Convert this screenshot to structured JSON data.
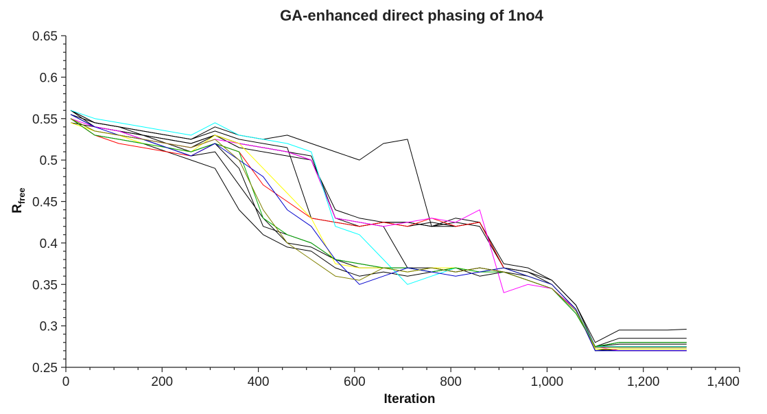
{
  "chart_data": {
    "type": "line",
    "title": "GA-enhanced direct phasing of 1no4",
    "xlabel": "Iteration",
    "ylabel_main": "R",
    "ylabel_sub": "free",
    "xlim": [
      0,
      1400
    ],
    "ylim": [
      0.25,
      0.65
    ],
    "x_ticks": [
      0,
      200,
      400,
      600,
      800,
      1000,
      1200,
      1400
    ],
    "x_tick_labels": [
      "0",
      "200",
      "400",
      "600",
      "800",
      "1,000",
      "1,200",
      "1,400"
    ],
    "y_ticks": [
      0.25,
      0.3,
      0.35,
      0.4,
      0.45,
      0.5,
      0.55,
      0.6,
      0.65
    ],
    "y_tick_labels": [
      "0.25",
      "0.3",
      "0.35",
      "0.4",
      "0.45",
      "0.5",
      "0.55",
      "0.6",
      "0.65"
    ],
    "grid": false,
    "legend": "none",
    "x": [
      10,
      60,
      110,
      160,
      210,
      260,
      310,
      360,
      410,
      460,
      510,
      560,
      610,
      660,
      710,
      760,
      810,
      860,
      910,
      960,
      1010,
      1060,
      1100,
      1150,
      1200,
      1250,
      1290
    ],
    "series": [
      {
        "color": "#000000",
        "values": [
          0.555,
          0.54,
          0.535,
          0.53,
          0.525,
          0.52,
          0.53,
          0.52,
          0.515,
          0.51,
          0.5,
          0.43,
          0.42,
          0.425,
          0.425,
          0.42,
          0.425,
          0.42,
          0.37,
          0.365,
          0.355,
          0.325,
          0.275,
          0.28,
          0.28,
          0.28,
          0.28
        ]
      },
      {
        "color": "#000000",
        "values": [
          0.56,
          0.545,
          0.54,
          0.535,
          0.53,
          0.525,
          0.535,
          0.525,
          0.52,
          0.515,
          0.43,
          0.425,
          0.42,
          0.425,
          0.42,
          0.425,
          0.42,
          0.425,
          0.37,
          0.365,
          0.35,
          0.32,
          0.275,
          0.275,
          0.275,
          0.275,
          0.275
        ]
      },
      {
        "color": "#000000",
        "values": [
          0.55,
          0.535,
          0.53,
          0.525,
          0.52,
          0.515,
          0.53,
          0.52,
          0.515,
          0.51,
          0.505,
          0.43,
          0.425,
          0.42,
          0.37,
          0.37,
          0.365,
          0.37,
          0.365,
          0.36,
          0.35,
          0.32,
          0.27,
          0.272,
          0.272,
          0.272,
          0.272
        ]
      },
      {
        "color": "#000000",
        "values": [
          0.545,
          0.54,
          0.535,
          0.53,
          0.52,
          0.51,
          0.52,
          0.49,
          0.42,
          0.41,
          0.4,
          0.38,
          0.375,
          0.37,
          0.37,
          0.365,
          0.37,
          0.365,
          0.37,
          0.36,
          0.35,
          0.32,
          0.27,
          0.27,
          0.27,
          0.27,
          0.27
        ]
      },
      {
        "color": "#000000",
        "values": [
          0.56,
          0.54,
          0.535,
          0.525,
          0.515,
          0.505,
          0.51,
          0.47,
          0.43,
          0.4,
          0.395,
          0.38,
          0.37,
          0.37,
          0.365,
          0.37,
          0.365,
          0.37,
          0.365,
          0.355,
          0.345,
          0.315,
          0.275,
          0.278,
          0.278,
          0.278,
          0.278
        ]
      },
      {
        "color": "#000000",
        "values": [
          0.555,
          0.545,
          0.54,
          0.535,
          0.53,
          0.525,
          0.54,
          0.53,
          0.525,
          0.53,
          0.52,
          0.51,
          0.5,
          0.52,
          0.525,
          0.42,
          0.42,
          0.425,
          0.375,
          0.37,
          0.355,
          0.325,
          0.28,
          0.295,
          0.295,
          0.295,
          0.296
        ]
      },
      {
        "color": "#000000",
        "values": [
          0.55,
          0.53,
          0.525,
          0.52,
          0.51,
          0.5,
          0.49,
          0.44,
          0.41,
          0.395,
          0.39,
          0.37,
          0.36,
          0.365,
          0.36,
          0.365,
          0.37,
          0.36,
          0.365,
          0.355,
          0.345,
          0.32,
          0.272,
          0.27,
          0.27,
          0.27,
          0.27
        ]
      },
      {
        "color": "#000000",
        "values": [
          0.56,
          0.545,
          0.54,
          0.53,
          0.525,
          0.52,
          0.53,
          0.515,
          0.51,
          0.505,
          0.5,
          0.44,
          0.43,
          0.425,
          0.425,
          0.42,
          0.43,
          0.425,
          0.37,
          0.36,
          0.35,
          0.32,
          0.275,
          0.285,
          0.285,
          0.285,
          0.285
        ]
      },
      {
        "color": "#ff0000",
        "values": [
          0.55,
          0.53,
          0.52,
          0.515,
          0.51,
          0.505,
          0.52,
          0.51,
          0.47,
          0.45,
          0.43,
          0.425,
          0.42,
          0.425,
          0.42,
          0.43,
          0.42,
          0.425,
          0.37,
          0.36,
          0.35,
          0.32,
          0.275,
          0.275,
          0.275,
          0.275,
          0.275
        ]
      },
      {
        "color": "#ff00ff",
        "values": [
          0.55,
          0.54,
          0.535,
          0.525,
          0.52,
          0.515,
          0.525,
          0.52,
          0.515,
          0.51,
          0.5,
          0.43,
          0.425,
          0.42,
          0.425,
          0.43,
          0.425,
          0.44,
          0.34,
          0.35,
          0.345,
          0.32,
          0.275,
          0.27,
          0.27,
          0.27,
          0.27
        ]
      },
      {
        "color": "#00ffff",
        "values": [
          0.56,
          0.55,
          0.545,
          0.54,
          0.535,
          0.53,
          0.545,
          0.53,
          0.525,
          0.52,
          0.51,
          0.42,
          0.41,
          0.38,
          0.35,
          0.36,
          0.37,
          0.365,
          0.37,
          0.36,
          0.35,
          0.32,
          0.275,
          0.275,
          0.275,
          0.275,
          0.275
        ]
      },
      {
        "color": "#ffff00",
        "values": [
          0.545,
          0.535,
          0.53,
          0.52,
          0.515,
          0.51,
          0.53,
          0.52,
          0.49,
          0.46,
          0.43,
          0.375,
          0.37,
          0.37,
          0.365,
          0.37,
          0.37,
          0.365,
          0.37,
          0.36,
          0.35,
          0.32,
          0.272,
          0.272,
          0.272,
          0.272,
          0.272
        ]
      },
      {
        "color": "#00aa00",
        "values": [
          0.55,
          0.53,
          0.525,
          0.52,
          0.515,
          0.51,
          0.52,
          0.51,
          0.43,
          0.41,
          0.4,
          0.38,
          0.375,
          0.37,
          0.37,
          0.365,
          0.37,
          0.365,
          0.365,
          0.355,
          0.345,
          0.315,
          0.275,
          0.28,
          0.28,
          0.28,
          0.28
        ]
      },
      {
        "color": "#0000cc",
        "values": [
          0.555,
          0.54,
          0.53,
          0.525,
          0.515,
          0.505,
          0.52,
          0.5,
          0.48,
          0.44,
          0.42,
          0.38,
          0.35,
          0.36,
          0.37,
          0.365,
          0.36,
          0.365,
          0.37,
          0.36,
          0.35,
          0.32,
          0.27,
          0.27,
          0.27,
          0.27,
          0.27
        ]
      },
      {
        "color": "#808000",
        "values": [
          0.55,
          0.535,
          0.53,
          0.525,
          0.52,
          0.515,
          0.525,
          0.5,
          0.44,
          0.4,
          0.38,
          0.36,
          0.355,
          0.37,
          0.365,
          0.37,
          0.365,
          0.37,
          0.365,
          0.355,
          0.345,
          0.318,
          0.274,
          0.274,
          0.274,
          0.274,
          0.274
        ]
      }
    ]
  }
}
